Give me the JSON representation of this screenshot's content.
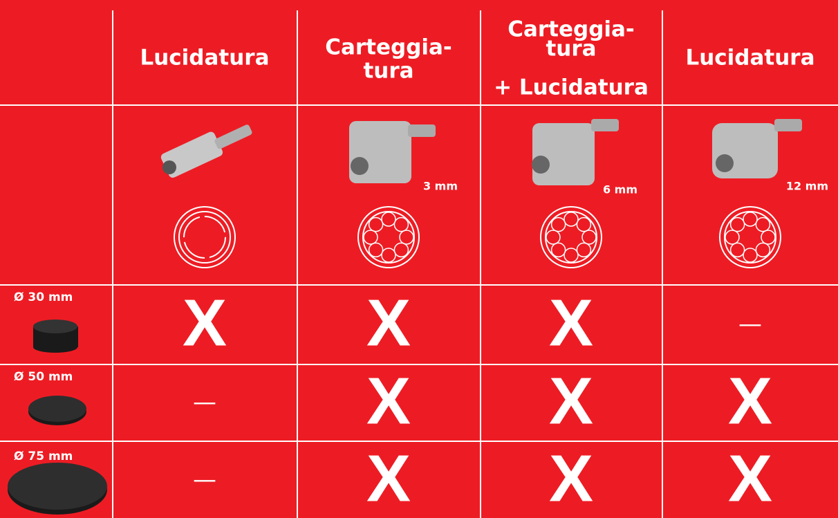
{
  "header": {
    "columns": [
      {
        "lines": [
          "Lucidatura"
        ]
      },
      {
        "lines": [
          "Carteggia-",
          "tura"
        ]
      },
      {
        "lines": [
          "Carteggia-",
          "tura",
          "+ Lucidatura"
        ]
      },
      {
        "lines": [
          "Lucidatura"
        ]
      }
    ]
  },
  "size_labels": [
    "3 mm",
    "6 mm",
    "12 mm"
  ],
  "rows": [
    {
      "label": "Ø 30 mm",
      "cells": [
        "X",
        "X",
        "X",
        "—"
      ]
    },
    {
      "label": "Ø 50 mm",
      "cells": [
        "—",
        "X",
        "X",
        "X"
      ]
    },
    {
      "label": "Ø 75 mm",
      "cells": [
        "—",
        "X",
        "X",
        "X"
      ]
    }
  ]
}
